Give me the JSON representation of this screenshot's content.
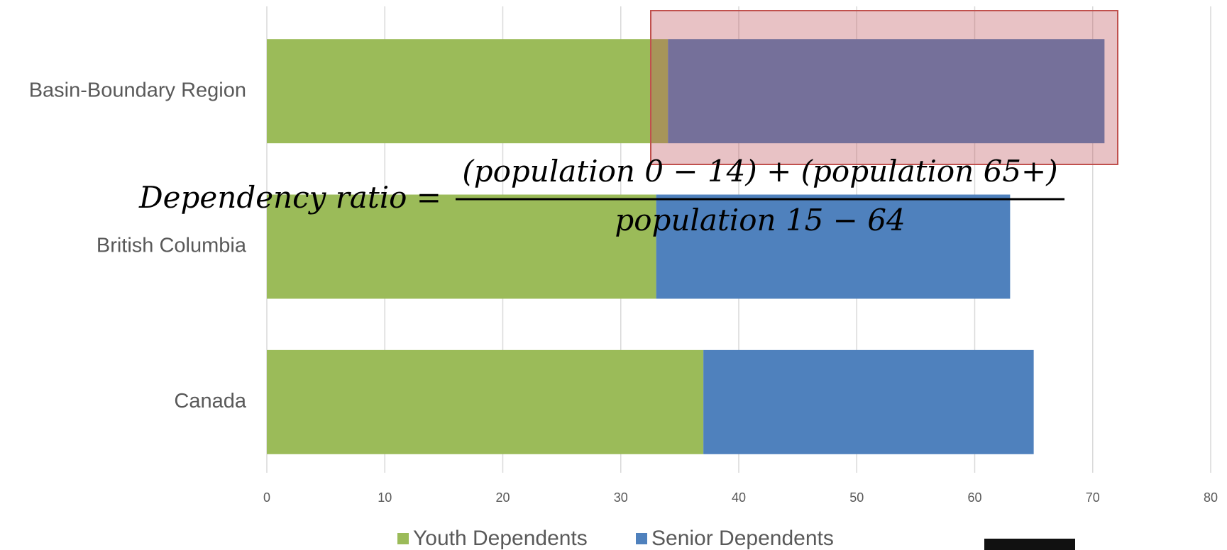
{
  "chart_data": {
    "type": "bar",
    "orientation": "horizontal",
    "stacked": true,
    "categories": [
      "Basin-Boundary Region",
      "British Columbia",
      "Canada"
    ],
    "series": [
      {
        "name": "Youth Dependents",
        "color": "#9bbb59",
        "values": [
          34,
          33,
          37
        ]
      },
      {
        "name": "Senior Dependents",
        "color": "#4f81bd",
        "values": [
          37,
          30,
          28
        ]
      }
    ],
    "xlim": [
      0,
      80
    ],
    "xticks": [
      0,
      10,
      20,
      30,
      40,
      50,
      60,
      70,
      80
    ],
    "grid": true,
    "legend": "bottom",
    "annotation": {
      "lhs": "Dependency ratio =",
      "numerator": "(population 0 − 14) + (population 65+)",
      "denominator": "population 15 − 64"
    }
  }
}
